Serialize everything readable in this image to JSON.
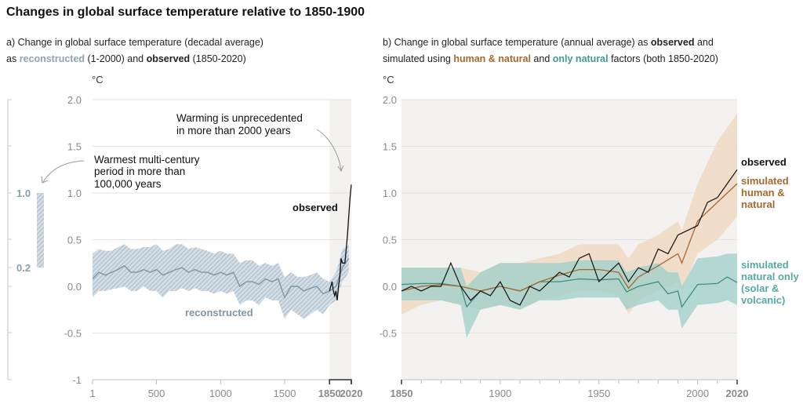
{
  "title": "Changes in global surface temperature relative to 1850-1900",
  "panel_a": {
    "subtitle_line1": "a) Change in global surface temperature (decadal average)",
    "subtitle_pre": "as ",
    "subtitle_reconstructed": "reconstructed",
    "subtitle_mid": " (1-2000) and ",
    "subtitle_observed": "observed",
    "subtitle_post": " (1850-2020)",
    "unit": "°C",
    "annotation_unprecedented": [
      "Warming is unprecedented",
      "in more than 2000 years"
    ],
    "annotation_warmest": [
      "Warmest multi-century",
      "period in more than",
      "100,000 years"
    ],
    "label_observed": "observed",
    "label_reconstructed": "reconstructed",
    "scale_bar": {
      "upper": "1.0",
      "lower": "0.2",
      "range": [
        0.2,
        1.0
      ]
    }
  },
  "panel_b": {
    "subtitle_line1_pre": "b) Change in global surface temperature (annual average) as ",
    "subtitle_line1_observed": "observed",
    "subtitle_line1_post": " and",
    "subtitle_line2_pre": "simulated using ",
    "subtitle_human": "human & natural",
    "subtitle_mid": " and ",
    "subtitle_natural": "only natural",
    "subtitle_post": " factors (both 1850-2020)",
    "unit": "°C",
    "label_observed": "observed",
    "label_human": [
      "simulated",
      "human &",
      "natural"
    ],
    "label_natural": [
      "simulated",
      "natural only",
      "(solar &",
      "volcanic)"
    ]
  },
  "colors": {
    "reconstructed": "#7f95a5",
    "reconstructed_band": "#b9c7d2",
    "observed": "#111111",
    "human": "#a5692f",
    "human_band": "#f0dcc5",
    "natural": "#3f8c84",
    "natural_band": "#9dcfca",
    "recent_shade": "#f3f2f0"
  },
  "chart_data": [
    {
      "type": "line",
      "xlim": [
        1,
        2020
      ],
      "ylim": [
        -1,
        2
      ],
      "x_ticks": [
        "1",
        "500",
        "1000",
        "1500",
        "1850",
        "2020"
      ],
      "x_tick_values": [
        1,
        500,
        1000,
        1500,
        1850,
        2020
      ],
      "y_ticks": [
        "2.0",
        "1.5",
        "1.0",
        "0.5",
        "0.0",
        "-0.5",
        "-1"
      ],
      "y_tick_values": [
        2,
        1.5,
        1,
        0.5,
        0,
        -0.5,
        -1
      ],
      "ylabel": "°C",
      "grid": true,
      "series": [
        {
          "name": "reconstructed",
          "x": [
            1,
            50,
            100,
            150,
            200,
            250,
            300,
            350,
            400,
            450,
            500,
            550,
            600,
            650,
            700,
            750,
            800,
            850,
            900,
            950,
            1000,
            1050,
            1100,
            1150,
            1200,
            1250,
            1300,
            1350,
            1400,
            1450,
            1500,
            1550,
            1600,
            1650,
            1700,
            1750,
            1800,
            1850,
            1900,
            1950,
            2000
          ],
          "y": [
            0.08,
            0.15,
            0.12,
            0.15,
            0.18,
            0.22,
            0.15,
            0.15,
            0.18,
            0.15,
            0.18,
            0.12,
            0.15,
            0.18,
            0.2,
            0.15,
            0.18,
            0.15,
            0.15,
            0.12,
            0.15,
            0.12,
            0.15,
            0.0,
            0.05,
            0.05,
            0.02,
            0.08,
            0.05,
            0.08,
            -0.12,
            0.0,
            0.0,
            -0.05,
            -0.02,
            0.0,
            -0.08,
            -0.05,
            0.0,
            0.2,
            0.3
          ],
          "lo": [
            -0.12,
            -0.05,
            -0.05,
            -0.03,
            -0.02,
            0.0,
            -0.05,
            -0.05,
            0.0,
            -0.05,
            -0.05,
            -0.12,
            -0.05,
            -0.05,
            -0.02,
            -0.05,
            -0.02,
            -0.05,
            -0.05,
            -0.08,
            -0.05,
            -0.08,
            -0.05,
            -0.2,
            -0.15,
            -0.15,
            -0.2,
            -0.12,
            -0.15,
            -0.15,
            -0.35,
            -0.25,
            -0.3,
            -0.35,
            -0.3,
            -0.25,
            -0.3,
            -0.2,
            -0.15,
            0.05,
            0.15
          ],
          "hi": [
            0.35,
            0.4,
            0.38,
            0.38,
            0.42,
            0.45,
            0.4,
            0.4,
            0.42,
            0.42,
            0.45,
            0.38,
            0.4,
            0.45,
            0.45,
            0.4,
            0.42,
            0.4,
            0.38,
            0.35,
            0.38,
            0.35,
            0.35,
            0.25,
            0.28,
            0.28,
            0.22,
            0.25,
            0.22,
            0.25,
            0.1,
            0.15,
            0.1,
            0.1,
            0.12,
            0.15,
            0.08,
            0.05,
            0.15,
            0.4,
            0.45
          ]
        },
        {
          "name": "observed",
          "x": [
            1850,
            1860,
            1870,
            1880,
            1890,
            1900,
            1910,
            1920,
            1930,
            1940,
            1950,
            1960,
            1970,
            1980,
            1990,
            2000,
            2010,
            2020
          ],
          "y": [
            -0.05,
            0.0,
            0.05,
            -0.05,
            -0.1,
            -0.05,
            -0.15,
            0.0,
            0.1,
            0.3,
            0.25,
            0.25,
            0.25,
            0.4,
            0.55,
            0.75,
            0.95,
            1.09
          ]
        }
      ]
    },
    {
      "type": "line",
      "xlim": [
        1850,
        2020
      ],
      "ylim": [
        -1,
        2
      ],
      "x_ticks": [
        "1850",
        "1900",
        "1950",
        "2000",
        "2020"
      ],
      "x_tick_values": [
        1850,
        1900,
        1950,
        2000,
        2020
      ],
      "y_ticks": [
        "2.0",
        "1.5",
        "1.0",
        "0.5",
        "0.0",
        "-0.5"
      ],
      "y_tick_values": [
        2,
        1.5,
        1,
        0.5,
        0,
        -0.5
      ],
      "ylabel": "°C",
      "grid": true,
      "series": [
        {
          "name": "simulated human & natural",
          "x": [
            1850,
            1860,
            1870,
            1880,
            1890,
            1900,
            1910,
            1920,
            1930,
            1940,
            1950,
            1960,
            1965,
            1970,
            1980,
            1990,
            1992,
            2000,
            2010,
            2020
          ],
          "y": [
            -0.05,
            0.0,
            0.02,
            0.0,
            -0.05,
            0.0,
            -0.05,
            0.05,
            0.12,
            0.18,
            0.18,
            0.15,
            -0.02,
            0.1,
            0.22,
            0.35,
            0.25,
            0.7,
            0.9,
            1.1
          ],
          "lo": [
            -0.3,
            -0.2,
            -0.15,
            -0.2,
            -0.25,
            -0.2,
            -0.25,
            -0.15,
            -0.1,
            -0.05,
            -0.05,
            -0.1,
            -0.3,
            -0.15,
            -0.05,
            0.05,
            -0.05,
            0.35,
            0.5,
            0.75
          ],
          "hi": [
            0.2,
            0.2,
            0.2,
            0.2,
            0.15,
            0.25,
            0.25,
            0.3,
            0.35,
            0.45,
            0.45,
            0.45,
            0.3,
            0.45,
            0.55,
            0.7,
            0.6,
            1.1,
            1.55,
            1.85
          ]
        },
        {
          "name": "simulated natural only (solar & volcanic)",
          "x": [
            1850,
            1860,
            1870,
            1880,
            1883,
            1890,
            1900,
            1910,
            1920,
            1930,
            1940,
            1950,
            1960,
            1964,
            1970,
            1980,
            1985,
            1990,
            1992,
            2000,
            2010,
            2015,
            2020
          ],
          "y": [
            0.02,
            0.03,
            0.03,
            0.0,
            -0.22,
            -0.05,
            0.0,
            -0.05,
            0.05,
            0.05,
            0.08,
            0.07,
            0.08,
            -0.06,
            0.0,
            0.05,
            -0.08,
            -0.05,
            -0.22,
            0.02,
            0.03,
            0.1,
            0.04
          ],
          "lo": [
            -0.15,
            -0.15,
            -0.15,
            -0.2,
            -0.55,
            -0.25,
            -0.2,
            -0.25,
            -0.15,
            -0.15,
            -0.12,
            -0.12,
            -0.12,
            -0.25,
            -0.2,
            -0.15,
            -0.25,
            -0.25,
            -0.45,
            -0.2,
            -0.18,
            -0.15,
            -0.2
          ],
          "hi": [
            0.2,
            0.2,
            0.2,
            0.2,
            0.0,
            0.15,
            0.25,
            0.25,
            0.25,
            0.25,
            0.28,
            0.28,
            0.28,
            0.15,
            0.2,
            0.25,
            0.15,
            0.15,
            0.0,
            0.3,
            0.32,
            0.35,
            0.35
          ]
        },
        {
          "name": "observed",
          "x": [
            1850,
            1855,
            1860,
            1865,
            1870,
            1875,
            1880,
            1885,
            1890,
            1895,
            1900,
            1905,
            1910,
            1915,
            1920,
            1925,
            1930,
            1935,
            1940,
            1945,
            1950,
            1955,
            1960,
            1965,
            1970,
            1975,
            1980,
            1985,
            1990,
            1995,
            2000,
            2005,
            2010,
            2015,
            2020
          ],
          "y": [
            -0.05,
            0.0,
            -0.05,
            0.0,
            0.0,
            0.25,
            0.0,
            -0.15,
            -0.05,
            -0.1,
            0.05,
            -0.15,
            -0.2,
            0.0,
            -0.05,
            0.05,
            0.15,
            0.1,
            0.3,
            0.35,
            0.05,
            0.15,
            0.25,
            0.05,
            0.2,
            0.15,
            0.4,
            0.35,
            0.55,
            0.6,
            0.65,
            0.9,
            0.95,
            1.1,
            1.25
          ]
        }
      ]
    }
  ]
}
